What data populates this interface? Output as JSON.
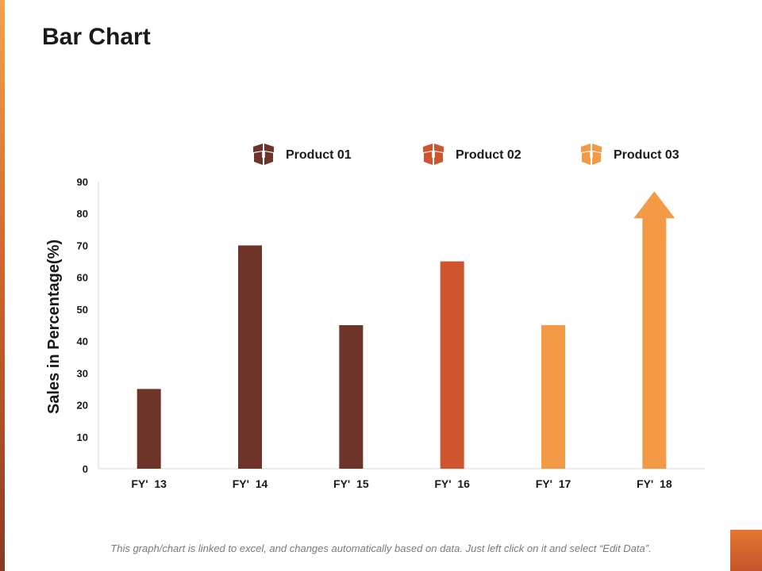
{
  "slide": {
    "title": "Bar Chart",
    "footer": "This graph/chart is linked to excel, and changes automatically based on data. Just left click on it and select “Edit Data”."
  },
  "colors": {
    "product_01": "#6e3329",
    "product_02": "#cd5630",
    "product_03": "#f29a46",
    "text": "#1a1a1a",
    "axis": "#d9d9d9",
    "accent_strip": "#e07030"
  },
  "chart_data": {
    "type": "bar",
    "title": "",
    "xlabel": "",
    "ylabel": "Sales in Percentage(%)",
    "ylim": [
      0,
      90
    ],
    "yticks": [
      "0",
      "10",
      "20",
      "30",
      "40",
      "50",
      "60",
      "70",
      "80",
      "90"
    ],
    "categories": [
      "FY'  13",
      "FY'  14",
      "FY'  15",
      "FY'  16",
      "FY'  17",
      "FY'  18"
    ],
    "values": [
      25,
      70,
      45,
      65,
      45,
      80
    ],
    "bar_series": [
      "Product 01",
      "Product 01",
      "Product 01",
      "Product 02",
      "Product 03",
      "Product 03"
    ],
    "final_bar_style": "arrow",
    "legend": {
      "position": "top",
      "entries": [
        {
          "name": "Product 01",
          "icon": "box-icon",
          "color": "#6e3329"
        },
        {
          "name": "Product 02",
          "icon": "box-icon",
          "color": "#cd5630"
        },
        {
          "name": "Product 03",
          "icon": "box-icon",
          "color": "#f29a46"
        }
      ]
    },
    "grid": false
  }
}
